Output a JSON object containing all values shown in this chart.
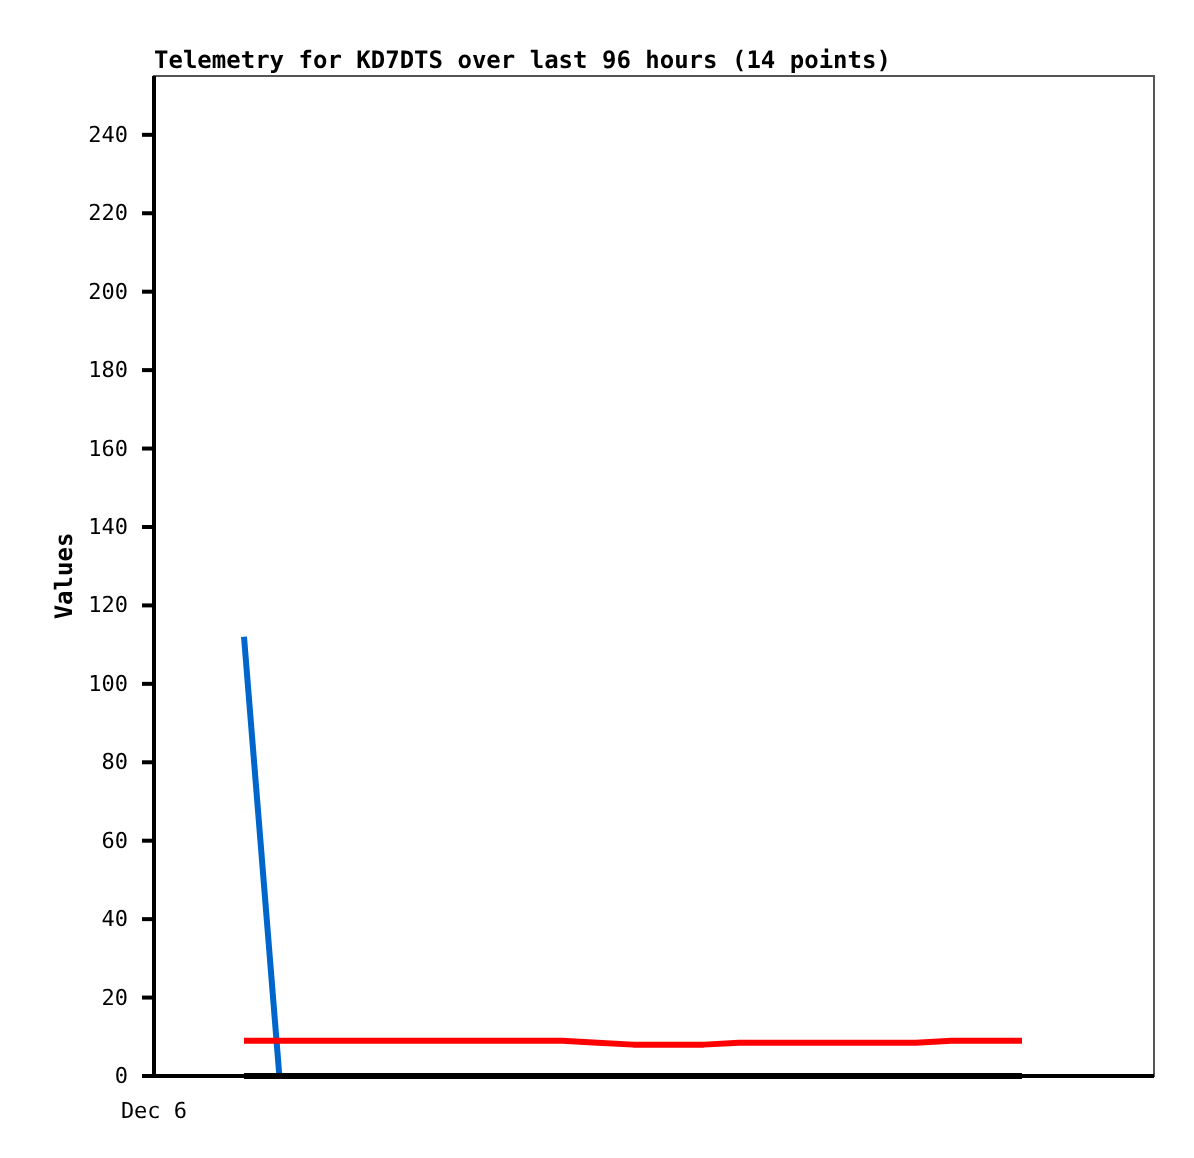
{
  "chart_data": {
    "type": "line",
    "title": "Telemetry for KD7DTS over last 96 hours (14 points)",
    "ylabel": "Values",
    "annotations": [
      "Dec 6"
    ],
    "categories": [
      null,
      null,
      null,
      null,
      null,
      null,
      null,
      null,
      null,
      null,
      null,
      null,
      null,
      null,
      null,
      null,
      null,
      null,
      null,
      null,
      null,
      null,
      null
    ],
    "ylim": [
      0,
      255
    ],
    "yticks": [
      0,
      20,
      40,
      60,
      80,
      100,
      120,
      140,
      160,
      180,
      200,
      220,
      240
    ],
    "marker": "none",
    "line_style": "solid",
    "series": [
      {
        "color": "#0066cc",
        "values": [
          112,
          0,
          null,
          null,
          null,
          null,
          null,
          null,
          null,
          null,
          null,
          null,
          null,
          null,
          null,
          null,
          null,
          null,
          null,
          null,
          null,
          null,
          null
        ]
      },
      {
        "color": "#ff0000",
        "values": [
          9,
          9,
          9,
          9,
          9,
          9,
          9,
          9,
          9,
          9,
          8.5,
          8,
          8,
          8,
          8.5,
          8.5,
          8.5,
          8.5,
          8.5,
          8.5,
          9,
          9,
          9
        ]
      },
      {
        "color": "#000000",
        "values": [
          0,
          0,
          0,
          0,
          0,
          0,
          0,
          0,
          0,
          0,
          0,
          0,
          0,
          0,
          0,
          0,
          0,
          0,
          0,
          0,
          0,
          0,
          0
        ]
      }
    ]
  }
}
